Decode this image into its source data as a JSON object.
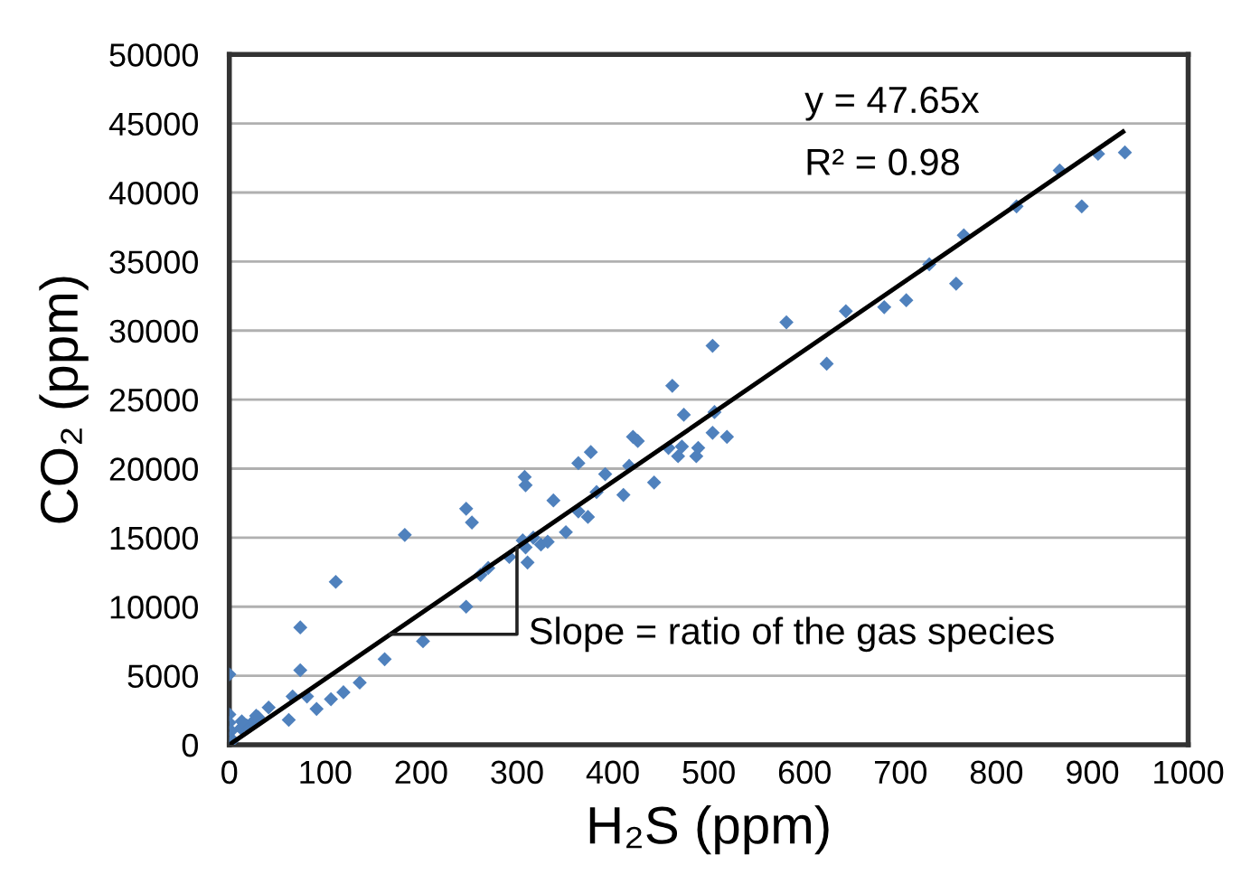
{
  "chart_data": {
    "type": "scatter",
    "xlabel": "H₂S (ppm)",
    "ylabel": "CO₂ (ppm)",
    "xlim": [
      0,
      1000
    ],
    "ylim": [
      0,
      50000
    ],
    "xticks": [
      0,
      100,
      200,
      300,
      400,
      500,
      600,
      700,
      800,
      900,
      1000
    ],
    "yticks": [
      0,
      5000,
      10000,
      15000,
      20000,
      25000,
      30000,
      35000,
      40000,
      45000,
      50000
    ],
    "grid": "y",
    "annotations": [
      "y = 47.65x",
      "R² = 0.98",
      "Slope = ratio of the gas species"
    ],
    "series": [
      {
        "color": "#4f81bd",
        "marker": "diamond",
        "x": [
          0,
          0,
          0,
          1,
          2,
          3,
          12,
          18,
          25,
          30,
          13,
          28,
          41,
          62,
          66,
          74,
          74,
          81,
          91,
          106,
          111,
          119,
          136,
          162,
          183,
          202,
          247,
          247,
          253,
          262,
          270,
          292,
          306,
          308,
          309,
          311,
          309,
          317,
          325,
          338,
          332,
          351,
          364,
          374,
          383,
          377,
          364,
          392,
          411,
          417,
          421,
          426,
          443,
          458,
          462,
          468,
          472,
          474,
          487,
          489,
          506,
          504,
          519,
          504,
          581,
          623,
          643,
          683,
          706,
          730,
          758,
          766,
          821,
          866,
          889,
          906,
          934
        ],
        "values": [
          5100,
          2200,
          1600,
          500,
          1000,
          300,
          1200,
          1400,
          1700,
          2000,
          1700,
          2100,
          2700,
          1800,
          3500,
          8500,
          5400,
          3500,
          2600,
          3300,
          11800,
          3800,
          4500,
          6200,
          15200,
          7500,
          10000,
          17100,
          16100,
          12300,
          12800,
          13600,
          14800,
          19400,
          18800,
          13200,
          14300,
          15000,
          14500,
          17700,
          14700,
          15400,
          16900,
          16500,
          18300,
          21200,
          20400,
          19600,
          18100,
          20200,
          22300,
          22000,
          19000,
          21500,
          26000,
          20900,
          21600,
          23900,
          20900,
          21500,
          24100,
          22600,
          22300,
          28900,
          30600,
          27600,
          31400,
          31700,
          32200,
          34800,
          33400,
          36900,
          39000,
          41600,
          39000,
          42800,
          42900
        ]
      },
      {
        "type": "line",
        "color": "#000000",
        "x": [
          0,
          932
        ],
        "values": [
          0,
          44400
        ]
      }
    ]
  }
}
